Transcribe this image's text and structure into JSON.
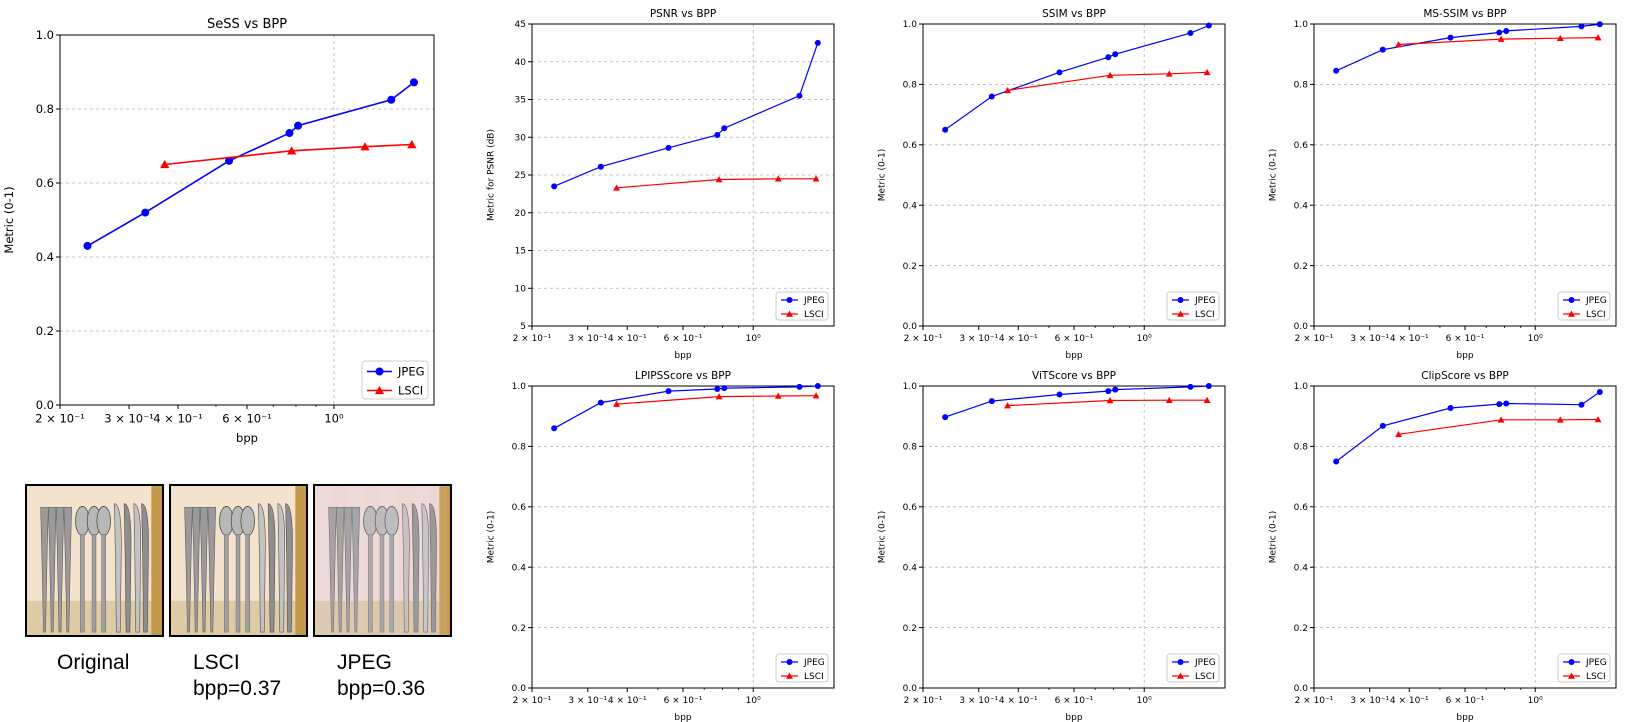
{
  "chart_data": [
    {
      "type": "line",
      "title": "SeSS vs BPP",
      "xlabel": "bpp",
      "ylabel": "Metric (0-1)",
      "xscale": "log",
      "xlim": [
        0.2,
        1.8
      ],
      "ylim": [
        0.0,
        1.0
      ],
      "yticks": [
        0.0,
        0.2,
        0.4,
        0.6,
        0.8,
        1.0
      ],
      "xtick_labels": [
        "2 × 10⁻¹",
        "3 × 10⁻¹",
        "4 × 10⁻¹",
        "6 × 10⁻¹",
        "10⁰"
      ],
      "grid": true,
      "legend_position": "lower-right",
      "series": [
        {
          "name": "JPEG",
          "color": "#0000ff",
          "marker": "circle",
          "x": [
            0.235,
            0.33,
            0.54,
            0.77,
            0.81,
            1.4,
            1.6
          ],
          "y": [
            0.43,
            0.52,
            0.66,
            0.735,
            0.755,
            0.825,
            0.872
          ]
        },
        {
          "name": "LSCI",
          "color": "#ff0000",
          "marker": "triangle",
          "x": [
            0.37,
            0.78,
            1.2,
            1.58
          ],
          "y": [
            0.65,
            0.687,
            0.698,
            0.704
          ]
        }
      ]
    },
    {
      "type": "line",
      "title": "PSNR vs BPP",
      "xlabel": "bpp",
      "ylabel": "Metric for PSNR (dB)",
      "xscale": "log",
      "xlim": [
        0.2,
        1.8
      ],
      "ylim": [
        5,
        45
      ],
      "yticks": [
        5,
        10,
        15,
        20,
        25,
        30,
        35,
        40,
        45
      ],
      "xtick_labels": [
        "2 × 10⁻¹",
        "3 × 10⁻¹",
        "4 × 10⁻¹",
        "6 × 10⁻¹",
        "10⁰"
      ],
      "grid": true,
      "legend_position": "lower-right",
      "series": [
        {
          "name": "JPEG",
          "color": "#0000ff",
          "marker": "circle",
          "x": [
            0.235,
            0.33,
            0.54,
            0.77,
            0.81,
            1.4,
            1.6
          ],
          "y": [
            23.5,
            26.1,
            28.6,
            30.3,
            31.2,
            35.5,
            42.5
          ]
        },
        {
          "name": "LSCI",
          "color": "#ff0000",
          "marker": "triangle",
          "x": [
            0.37,
            0.78,
            1.2,
            1.58
          ],
          "y": [
            23.3,
            24.4,
            24.5,
            24.5
          ]
        }
      ]
    },
    {
      "type": "line",
      "title": "SSIM vs BPP",
      "xlabel": "bpp",
      "ylabel": "Metric (0-1)",
      "xscale": "log",
      "xlim": [
        0.2,
        1.8
      ],
      "ylim": [
        0.0,
        1.0
      ],
      "yticks": [
        0.0,
        0.2,
        0.4,
        0.6,
        0.8,
        1.0
      ],
      "xtick_labels": [
        "2 × 10⁻¹",
        "3 × 10⁻¹",
        "4 × 10⁻¹",
        "6 × 10⁻¹",
        "10⁰"
      ],
      "grid": true,
      "legend_position": "lower-right",
      "series": [
        {
          "name": "JPEG",
          "color": "#0000ff",
          "marker": "circle",
          "x": [
            0.235,
            0.33,
            0.54,
            0.77,
            0.81,
            1.4,
            1.6
          ],
          "y": [
            0.65,
            0.76,
            0.84,
            0.89,
            0.9,
            0.97,
            0.995
          ]
        },
        {
          "name": "LSCI",
          "color": "#ff0000",
          "marker": "triangle",
          "x": [
            0.37,
            0.78,
            1.2,
            1.58
          ],
          "y": [
            0.78,
            0.83,
            0.835,
            0.84
          ]
        }
      ]
    },
    {
      "type": "line",
      "title": "MS-SSIM vs BPP",
      "xlabel": "bpp",
      "ylabel": "Metric (0-1)",
      "xscale": "log",
      "xlim": [
        0.2,
        1.8
      ],
      "ylim": [
        0.0,
        1.0
      ],
      "yticks": [
        0.0,
        0.2,
        0.4,
        0.6,
        0.8,
        1.0
      ],
      "xtick_labels": [
        "2 × 10⁻¹",
        "3 × 10⁻¹",
        "4 × 10⁻¹",
        "6 × 10⁻¹",
        "10⁰"
      ],
      "grid": true,
      "legend_position": "lower-right",
      "series": [
        {
          "name": "JPEG",
          "color": "#0000ff",
          "marker": "circle",
          "x": [
            0.235,
            0.33,
            0.54,
            0.77,
            0.81,
            1.4,
            1.6
          ],
          "y": [
            0.845,
            0.915,
            0.955,
            0.972,
            0.977,
            0.992,
            0.999
          ]
        },
        {
          "name": "LSCI",
          "color": "#ff0000",
          "marker": "triangle",
          "x": [
            0.37,
            0.78,
            1.2,
            1.58
          ],
          "y": [
            0.932,
            0.95,
            0.953,
            0.955
          ]
        }
      ]
    },
    {
      "type": "line",
      "title": "LPIPSScore vs BPP",
      "xlabel": "bpp",
      "ylabel": "Metric (0-1)",
      "xscale": "log",
      "xlim": [
        0.2,
        1.8
      ],
      "ylim": [
        0.0,
        1.0
      ],
      "yticks": [
        0.0,
        0.2,
        0.4,
        0.6,
        0.8,
        1.0
      ],
      "xtick_labels": [
        "2 × 10⁻¹",
        "3 × 10⁻¹",
        "4 × 10⁻¹",
        "6 × 10⁻¹",
        "10⁰"
      ],
      "grid": true,
      "legend_position": "lower-right",
      "series": [
        {
          "name": "JPEG",
          "color": "#0000ff",
          "marker": "circle",
          "x": [
            0.235,
            0.33,
            0.54,
            0.77,
            0.81,
            1.4,
            1.6
          ],
          "y": [
            0.86,
            0.945,
            0.983,
            0.99,
            0.993,
            0.997,
            1.0
          ]
        },
        {
          "name": "LSCI",
          "color": "#ff0000",
          "marker": "triangle",
          "x": [
            0.37,
            0.78,
            1.2,
            1.58
          ],
          "y": [
            0.94,
            0.965,
            0.967,
            0.968
          ]
        }
      ]
    },
    {
      "type": "line",
      "title": "ViTScore vs BPP",
      "xlabel": "bpp",
      "ylabel": "Metric (0-1)",
      "xscale": "log",
      "xlim": [
        0.2,
        1.8
      ],
      "ylim": [
        0.0,
        1.0
      ],
      "yticks": [
        0.0,
        0.2,
        0.4,
        0.6,
        0.8,
        1.0
      ],
      "xtick_labels": [
        "2 × 10⁻¹",
        "3 × 10⁻¹",
        "4 × 10⁻¹",
        "6 × 10⁻¹",
        "10⁰"
      ],
      "grid": true,
      "legend_position": "lower-right",
      "series": [
        {
          "name": "JPEG",
          "color": "#0000ff",
          "marker": "circle",
          "x": [
            0.235,
            0.33,
            0.54,
            0.77,
            0.81,
            1.4,
            1.6
          ],
          "y": [
            0.897,
            0.95,
            0.972,
            0.983,
            0.988,
            0.997,
            1.0
          ]
        },
        {
          "name": "LSCI",
          "color": "#ff0000",
          "marker": "triangle",
          "x": [
            0.37,
            0.78,
            1.2,
            1.58
          ],
          "y": [
            0.935,
            0.952,
            0.953,
            0.953
          ]
        }
      ]
    },
    {
      "type": "line",
      "title": "ClipScore vs BPP",
      "xlabel": "bpp",
      "ylabel": "Metric (0-1)",
      "xscale": "log",
      "xlim": [
        0.2,
        1.8
      ],
      "ylim": [
        0.0,
        1.0
      ],
      "yticks": [
        0.0,
        0.2,
        0.4,
        0.6,
        0.8,
        1.0
      ],
      "xtick_labels": [
        "2 × 10⁻¹",
        "3 × 10⁻¹",
        "4 × 10⁻¹",
        "6 × 10⁻¹",
        "10⁰"
      ],
      "grid": true,
      "legend_position": "lower-right",
      "series": [
        {
          "name": "JPEG",
          "color": "#0000ff",
          "marker": "circle",
          "x": [
            0.235,
            0.33,
            0.54,
            0.77,
            0.81,
            1.4,
            1.6
          ],
          "y": [
            0.75,
            0.868,
            0.927,
            0.94,
            0.942,
            0.938,
            0.98
          ]
        },
        {
          "name": "LSCI",
          "color": "#ff0000",
          "marker": "triangle",
          "x": [
            0.37,
            0.78,
            1.2,
            1.58
          ],
          "y": [
            0.84,
            0.888,
            0.888,
            0.889
          ]
        }
      ]
    }
  ],
  "comparison": {
    "images": [
      {
        "caption_line1": "Original",
        "caption_line2": ""
      },
      {
        "caption_line1": "LSCI",
        "caption_line2": "bpp=0.37"
      },
      {
        "caption_line1": "JPEG",
        "caption_line2": "bpp=0.36"
      }
    ]
  }
}
